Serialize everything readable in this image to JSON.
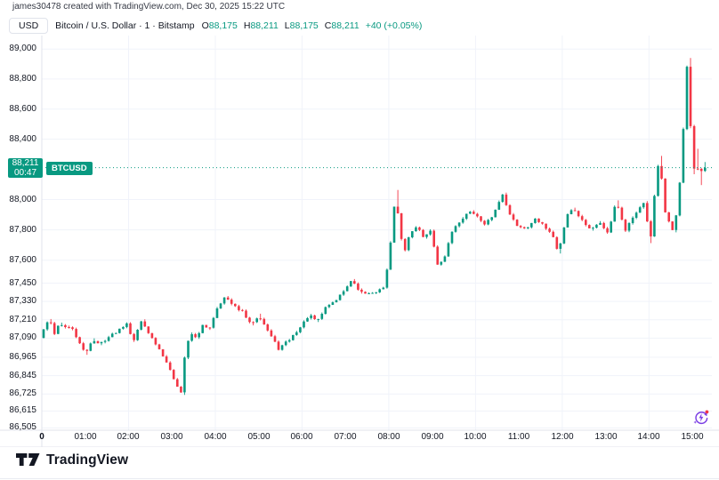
{
  "attribution": "james30478 created with TradingView.com, Dec 30, 2025 15:22 UTC",
  "legend": {
    "currency_badge": "USD",
    "symbol_title": "Bitcoin / U.S. Dollar · 1 · Bitstamp",
    "ohlc": [
      {
        "label": "O",
        "value": "88,175"
      },
      {
        "label": "H",
        "value": "88,211"
      },
      {
        "label": "L",
        "value": "88,175"
      },
      {
        "label": "C",
        "value": "88,211"
      }
    ],
    "change": "+40 (+0.05%)"
  },
  "price_label": {
    "price": "88,211",
    "countdown": "00:47",
    "symbol_badge": "BTCUSD"
  },
  "footer": {
    "brand": "TradingView"
  },
  "colors": {
    "up": "#089981",
    "down": "#f23645",
    "badge_bg": "#089981",
    "grid": "#f0f3fa",
    "separator": "#e0e3eb",
    "axis_text": "#131722",
    "last_price_line": "#089981",
    "refresh_icon": "#7b3fe4",
    "alert_dot": "#f23645"
  },
  "chart_data": {
    "type": "candlestick",
    "title": "Bitcoin / U.S. Dollar",
    "symbol": "BTCUSD",
    "exchange": "Bitstamp",
    "interval_minutes": 1,
    "date": "Dec 30, 2025",
    "session_end_utc": "15:22 UTC",
    "ohlc_last": {
      "open": 88175,
      "high": 88211,
      "low": 88175,
      "close": 88211
    },
    "last_price": 88211,
    "change_abs": 40,
    "change_pct": 0.05,
    "y_axis": {
      "scale": "log",
      "price_at_plot_top": 89090,
      "price_at_plot_bottom": 86490
    },
    "x_axis": {
      "start_hour": 0,
      "end_hour": 15.45,
      "gridline_every_hours": 2
    },
    "y_ticks": [
      {
        "label": "89,000",
        "price": 89000
      },
      {
        "label": "88,800",
        "price": 88800
      },
      {
        "label": "88,600",
        "price": 88600
      },
      {
        "label": "88,400",
        "price": 88400
      },
      {
        "label": "88,000",
        "price": 88000
      },
      {
        "label": "87,800",
        "price": 87800
      },
      {
        "label": "87,600",
        "price": 87600
      },
      {
        "label": "87,450",
        "price": 87450
      },
      {
        "label": "87,330",
        "price": 87330
      },
      {
        "label": "87,210",
        "price": 87210
      },
      {
        "label": "87,090",
        "price": 87090
      },
      {
        "label": "86,965",
        "price": 86965
      },
      {
        "label": "86,845",
        "price": 86845
      },
      {
        "label": "86,725",
        "price": 86725
      },
      {
        "label": "86,615",
        "price": 86615
      },
      {
        "label": "86,505",
        "price": 86505
      }
    ],
    "x_ticks": [
      {
        "label": "0",
        "hour": 0,
        "bold": true
      },
      {
        "label": "01:00",
        "hour": 1
      },
      {
        "label": "02:00",
        "hour": 2
      },
      {
        "label": "03:00",
        "hour": 3
      },
      {
        "label": "04:00",
        "hour": 4
      },
      {
        "label": "05:00",
        "hour": 5
      },
      {
        "label": "06:00",
        "hour": 6
      },
      {
        "label": "07:00",
        "hour": 7
      },
      {
        "label": "08:00",
        "hour": 8
      },
      {
        "label": "09:00",
        "hour": 9
      },
      {
        "label": "10:00",
        "hour": 10
      },
      {
        "label": "11:00",
        "hour": 11
      },
      {
        "label": "12:00",
        "hour": 12
      },
      {
        "label": "13:00",
        "hour": 13
      },
      {
        "label": "14:00",
        "hour": 14
      },
      {
        "label": "15:00",
        "hour": 15
      }
    ],
    "sample_step_minutes": 5,
    "price_path": [
      [
        0,
        87090
      ],
      [
        0.1,
        87160
      ],
      [
        0.22,
        87210
      ],
      [
        0.33,
        87120
      ],
      [
        0.45,
        87190
      ],
      [
        0.58,
        87160
      ],
      [
        0.75,
        87150
      ],
      [
        0.95,
        87030
      ],
      [
        1.05,
        86990
      ],
      [
        1.2,
        87080
      ],
      [
        1.35,
        87050
      ],
      [
        1.55,
        87090
      ],
      [
        1.75,
        87130
      ],
      [
        2,
        87190
      ],
      [
        2.15,
        87070
      ],
      [
        2.35,
        87210
      ],
      [
        2.55,
        87100
      ],
      [
        2.8,
        86990
      ],
      [
        3,
        86890
      ],
      [
        3.15,
        86780
      ],
      [
        3.27,
        86725
      ],
      [
        3.35,
        87030
      ],
      [
        3.5,
        87120
      ],
      [
        3.62,
        87090
      ],
      [
        3.75,
        87170
      ],
      [
        3.9,
        87150
      ],
      [
        4.1,
        87300
      ],
      [
        4.27,
        87360
      ],
      [
        4.45,
        87300
      ],
      [
        4.65,
        87270
      ],
      [
        4.85,
        87180
      ],
      [
        5.05,
        87240
      ],
      [
        5.25,
        87140
      ],
      [
        5.5,
        87020
      ],
      [
        5.75,
        87080
      ],
      [
        6,
        87160
      ],
      [
        6.2,
        87240
      ],
      [
        6.4,
        87200
      ],
      [
        6.6,
        87300
      ],
      [
        6.8,
        87330
      ],
      [
        7,
        87400
      ],
      [
        7.2,
        87470
      ],
      [
        7.35,
        87390
      ],
      [
        7.55,
        87380
      ],
      [
        7.8,
        87400
      ],
      [
        7.95,
        87430
      ],
      [
        8.08,
        87700
      ],
      [
        8.2,
        88060
      ],
      [
        8.3,
        87760
      ],
      [
        8.42,
        87670
      ],
      [
        8.55,
        87790
      ],
      [
        8.7,
        87820
      ],
      [
        8.85,
        87750
      ],
      [
        9,
        87800
      ],
      [
        9.17,
        87570
      ],
      [
        9.33,
        87620
      ],
      [
        9.5,
        87790
      ],
      [
        9.75,
        87880
      ],
      [
        9.95,
        87930
      ],
      [
        10.1,
        87880
      ],
      [
        10.25,
        87830
      ],
      [
        10.45,
        87900
      ],
      [
        10.67,
        88040
      ],
      [
        10.83,
        87900
      ],
      [
        11,
        87830
      ],
      [
        11.2,
        87810
      ],
      [
        11.4,
        87870
      ],
      [
        11.6,
        87830
      ],
      [
        11.8,
        87780
      ],
      [
        11.95,
        87650
      ],
      [
        12.15,
        87900
      ],
      [
        12.3,
        87940
      ],
      [
        12.5,
        87860
      ],
      [
        12.7,
        87800
      ],
      [
        12.9,
        87850
      ],
      [
        13.1,
        87780
      ],
      [
        13.28,
        87990
      ],
      [
        13.5,
        87800
      ],
      [
        13.7,
        87900
      ],
      [
        13.93,
        87990
      ],
      [
        14.07,
        87720
      ],
      [
        14.2,
        88130
      ],
      [
        14.28,
        88280
      ],
      [
        14.42,
        87900
      ],
      [
        14.6,
        87790
      ],
      [
        14.72,
        87990
      ],
      [
        14.8,
        88300
      ],
      [
        14.88,
        88700
      ],
      [
        14.93,
        88940
      ],
      [
        15,
        88480
      ],
      [
        15.07,
        88170
      ],
      [
        15.13,
        88330
      ],
      [
        15.2,
        88100
      ],
      [
        15.28,
        88240
      ],
      [
        15.37,
        88211
      ]
    ]
  }
}
